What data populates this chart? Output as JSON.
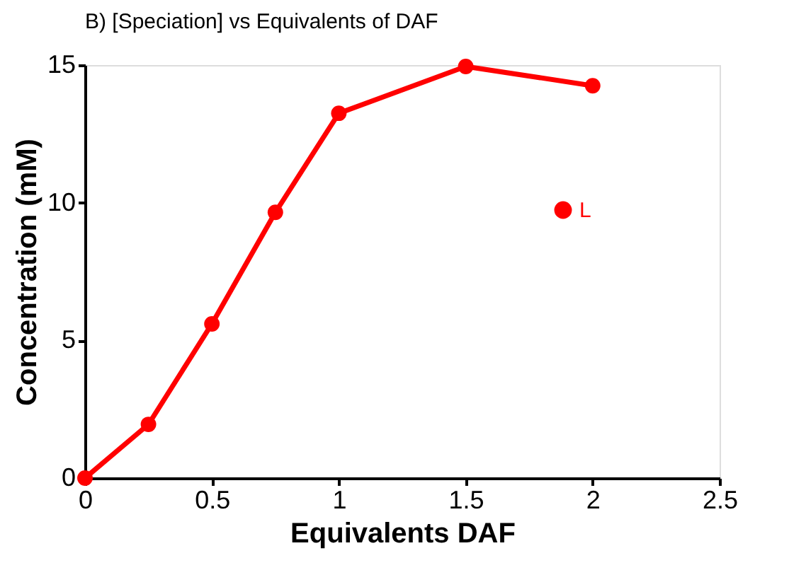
{
  "chart_data": {
    "type": "line",
    "title": "B) [Speciation] vs Equivalents of DAF",
    "xlabel": "Equivalents DAF",
    "ylabel": "Concentration (mM)",
    "x": [
      0,
      0.25,
      0.5,
      0.75,
      1,
      1.5,
      2
    ],
    "series": [
      {
        "name": "L",
        "color": "#ff0000",
        "values": [
          0,
          1.95,
          5.6,
          9.65,
          13.25,
          14.95,
          14.25
        ]
      }
    ],
    "xlim": [
      0,
      2.5
    ],
    "xticks": [
      0,
      0.5,
      1,
      1.5,
      2,
      2.5
    ],
    "ylim": [
      0,
      15
    ],
    "yticks": [
      0,
      5,
      10,
      15
    ],
    "grid": false,
    "legend": "right",
    "marker": "circle",
    "line_style": "solid"
  }
}
